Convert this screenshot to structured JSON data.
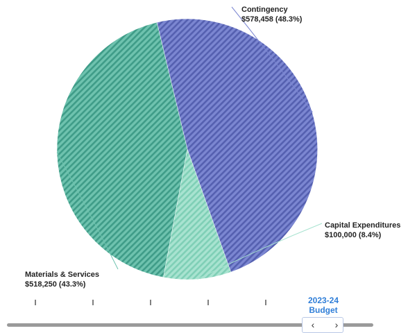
{
  "chart_data": {
    "type": "pie",
    "title": "",
    "slices": [
      {
        "name": "Contingency",
        "value": 578458,
        "percent": 48.3,
        "value_label": "$578,458 (48.3%)",
        "color": "#7b86d1",
        "stripe": "#5560b0"
      },
      {
        "name": "Capital Expenditures",
        "value": 100000,
        "percent": 8.4,
        "value_label": "$100,000 (8.4%)",
        "color": "#a8e3d0",
        "stripe": "#7fcfb6"
      },
      {
        "name": "Materials & Services",
        "value": 518250,
        "percent": 43.3,
        "value_label": "$518,250 (43.3%)",
        "color": "#6ec2ae",
        "stripe": "#3f9c88"
      }
    ]
  },
  "timeline": {
    "period_line1": "2023-24",
    "period_line2": "Budget",
    "prev_icon": "‹",
    "next_icon": "›",
    "accent": "#2f7ed8"
  }
}
